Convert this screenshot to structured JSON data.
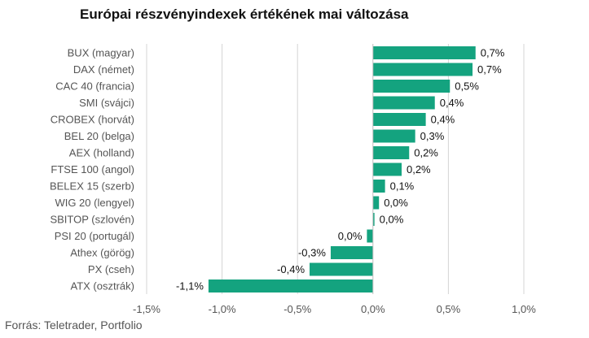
{
  "title": "Európai részvényindexek értékének mai változása",
  "source": "Forrás: Teletrader, Portfolio",
  "colors": {
    "bar": "#14a37f",
    "grid": "#d4d4d4",
    "axis": "#bdbdbd"
  },
  "chart_data": {
    "type": "bar",
    "orientation": "horizontal",
    "title": "Európai részvényindexek értékének mai változása",
    "xlabel": "",
    "ylabel": "",
    "xlim": [
      -1.5,
      1.0
    ],
    "grid": true,
    "categories": [
      "BUX (magyar)",
      "DAX (német)",
      "CAC 40 (francia)",
      "SMI (svájci)",
      "CROBEX (horvát)",
      "BEL 20 (belga)",
      "AEX (holland)",
      "FTSE 100 (angol)",
      "BELEX 15 (szerb)",
      "WIG 20 (lengyel)",
      "SBITOP (szlovén)",
      "PSI 20 (portugál)",
      "Athex (görög)",
      "PX (cseh)",
      "ATX (osztrák)"
    ],
    "values": [
      0.68,
      0.66,
      0.51,
      0.41,
      0.35,
      0.28,
      0.24,
      0.19,
      0.08,
      0.04,
      0.01,
      -0.04,
      -0.28,
      -0.42,
      -1.09
    ],
    "value_labels": [
      "0,7%",
      "0,7%",
      "0,5%",
      "0,4%",
      "0,4%",
      "0,3%",
      "0,2%",
      "0,2%",
      "0,1%",
      "0,0%",
      "0,0%",
      "0,0%",
      "-0,3%",
      "-0,4%",
      "-1,1%"
    ],
    "ticks": [
      -1.5,
      -1.0,
      -0.5,
      0.0,
      0.5,
      1.0
    ],
    "tick_labels": [
      "-1,5%",
      "-1,0%",
      "-0,5%",
      "0,0%",
      "0,5%",
      "1,0%"
    ]
  }
}
